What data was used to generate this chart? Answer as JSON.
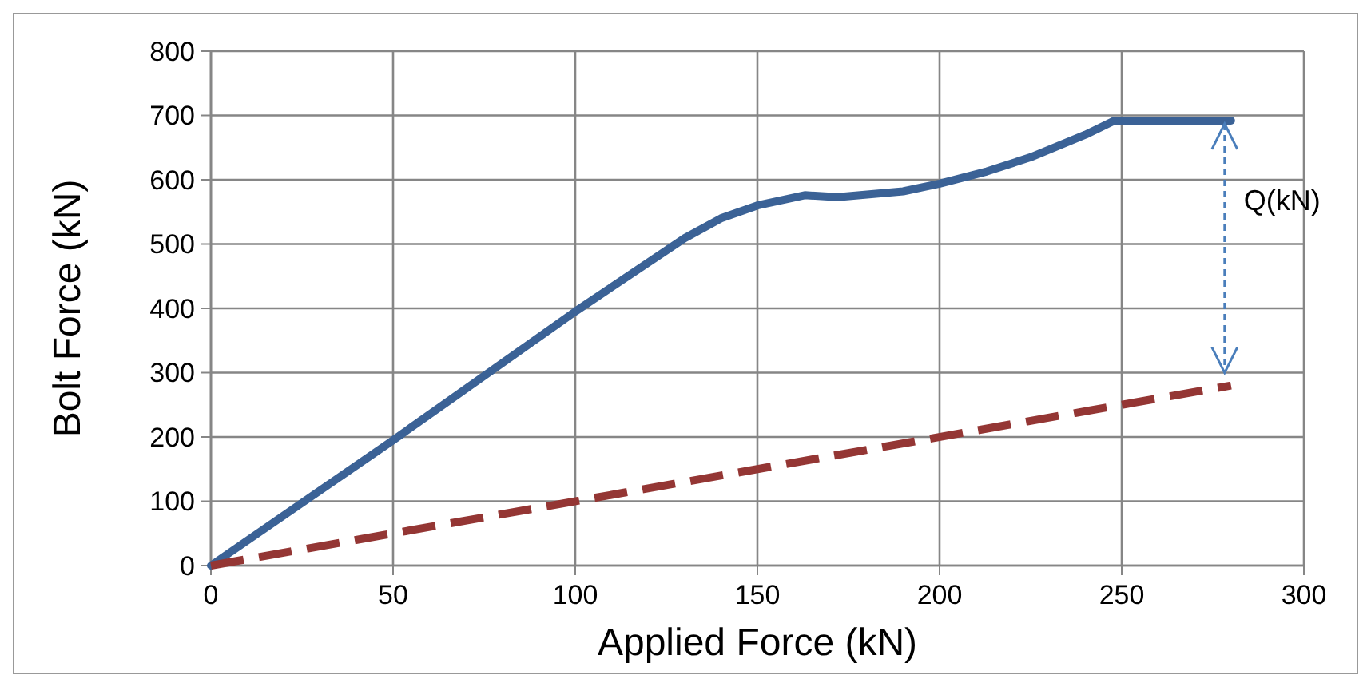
{
  "chart_data": {
    "type": "line",
    "xlabel": "Applied Force (kN)",
    "ylabel": "Bolt Force (kN)",
    "xlim": [
      0,
      300
    ],
    "xticks": [
      0,
      50,
      100,
      150,
      200,
      250,
      300
    ],
    "ylim": [
      0,
      800
    ],
    "yticks": [
      0,
      100,
      200,
      300,
      400,
      500,
      600,
      700,
      800
    ],
    "grid": true,
    "marker": "none",
    "series": [
      {
        "color": "#3b6296",
        "line_style": "solid",
        "x": [
          0,
          50,
          100,
          130,
          140,
          150,
          163,
          172,
          190,
          200,
          213,
          225,
          240,
          248,
          280
        ],
        "values": [
          0,
          195,
          395,
          509,
          540,
          560,
          576,
          573,
          582,
          594,
          613,
          635,
          670,
          692,
          692
        ]
      },
      {
        "color": "#943634",
        "line_style": "dashed",
        "x": [
          0,
          280
        ],
        "values": [
          0,
          280
        ]
      }
    ],
    "annotations": [
      "Q(kN)"
    ]
  }
}
